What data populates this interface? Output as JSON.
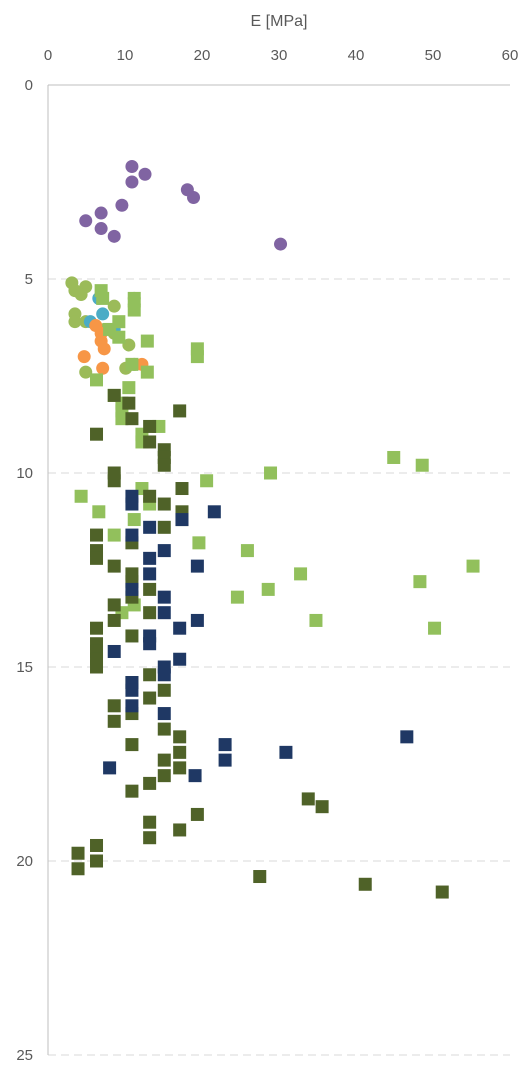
{
  "chart_data": {
    "type": "scatter",
    "title": "",
    "xlabel": "E [MPa]",
    "ylabel": "",
    "xlim": [
      0,
      60
    ],
    "ylim": [
      0,
      25
    ],
    "y_inverted": true,
    "x_axis_position": "top",
    "x_ticks": [
      0,
      10,
      20,
      30,
      40,
      50,
      60
    ],
    "y_ticks": [
      0,
      5,
      10,
      15,
      20,
      25
    ],
    "grid": {
      "horizontal": true,
      "vertical": false,
      "style": "dashed"
    },
    "legend": "none",
    "series": [
      {
        "marker": "circle",
        "color": "#8064a2",
        "points": [
          [
            10.9,
            2.1
          ],
          [
            12.6,
            2.3
          ],
          [
            10.9,
            2.5
          ],
          [
            18.1,
            2.7
          ],
          [
            18.9,
            2.9
          ],
          [
            9.6,
            3.1
          ],
          [
            6.9,
            3.3
          ],
          [
            4.9,
            3.5
          ],
          [
            6.9,
            3.7
          ],
          [
            8.6,
            3.9
          ],
          [
            30.2,
            4.1
          ]
        ]
      },
      {
        "marker": "circle",
        "color": "#9bbb59",
        "points": [
          [
            3.1,
            5.1
          ],
          [
            4.9,
            5.2
          ],
          [
            3.5,
            5.3
          ],
          [
            4.3,
            5.4
          ],
          [
            11.2,
            5.5
          ],
          [
            11.2,
            5.7
          ],
          [
            8.6,
            5.7
          ],
          [
            3.5,
            5.9
          ],
          [
            3.5,
            6.1
          ],
          [
            4.9,
            6.1
          ],
          [
            7.3,
            6.3
          ],
          [
            8.6,
            6.4
          ],
          [
            10.5,
            6.7
          ],
          [
            10.1,
            7.3
          ],
          [
            4.9,
            7.4
          ],
          [
            11.2,
            7.2
          ]
        ]
      },
      {
        "marker": "circle",
        "color": "#4bacc6",
        "points": [
          [
            6.6,
            5.5
          ],
          [
            7.1,
            5.9
          ],
          [
            5.5,
            6.1
          ],
          [
            8.6,
            6.3
          ]
        ]
      },
      {
        "marker": "circle",
        "color": "#f79646",
        "points": [
          [
            6.2,
            6.2
          ],
          [
            6.9,
            6.4
          ],
          [
            6.9,
            6.6
          ],
          [
            7.3,
            6.8
          ],
          [
            4.7,
            7.0
          ],
          [
            12.2,
            7.2
          ],
          [
            7.1,
            7.3
          ]
        ]
      },
      {
        "marker": "square",
        "color": "#92c05c",
        "points": [
          [
            6.9,
            5.3
          ],
          [
            7.1,
            5.5
          ],
          [
            11.2,
            5.5
          ],
          [
            11.2,
            5.8
          ],
          [
            9.2,
            6.1
          ],
          [
            8.0,
            6.3
          ],
          [
            9.2,
            6.5
          ],
          [
            12.9,
            6.6
          ],
          [
            19.4,
            6.8
          ],
          [
            19.4,
            7.0
          ],
          [
            10.9,
            7.2
          ],
          [
            12.9,
            7.4
          ],
          [
            6.3,
            7.6
          ],
          [
            10.5,
            7.8
          ],
          [
            8.6,
            8.0
          ],
          [
            9.6,
            8.2
          ],
          [
            9.6,
            8.4
          ],
          [
            9.6,
            8.6
          ],
          [
            14.4,
            8.8
          ],
          [
            12.2,
            9.0
          ],
          [
            12.2,
            9.2
          ],
          [
            44.9,
            9.6
          ],
          [
            48.6,
            9.8
          ],
          [
            28.9,
            10.0
          ],
          [
            20.6,
            10.2
          ],
          [
            12.2,
            10.4
          ],
          [
            4.3,
            10.6
          ],
          [
            13.2,
            10.8
          ],
          [
            6.6,
            11.0
          ],
          [
            11.2,
            11.2
          ],
          [
            8.6,
            11.6
          ],
          [
            19.6,
            11.8
          ],
          [
            25.9,
            12.0
          ],
          [
            55.2,
            12.4
          ],
          [
            32.8,
            12.6
          ],
          [
            48.3,
            12.8
          ],
          [
            28.6,
            13.0
          ],
          [
            24.6,
            13.2
          ],
          [
            11.2,
            13.4
          ],
          [
            9.6,
            13.6
          ],
          [
            34.8,
            13.8
          ],
          [
            50.2,
            14.0
          ]
        ]
      },
      {
        "marker": "square",
        "color": "#4f6228",
        "points": [
          [
            8.6,
            8.0
          ],
          [
            10.5,
            8.2
          ],
          [
            17.1,
            8.4
          ],
          [
            10.9,
            8.6
          ],
          [
            13.2,
            8.8
          ],
          [
            6.3,
            9.0
          ],
          [
            13.2,
            9.2
          ],
          [
            15.1,
            9.4
          ],
          [
            15.1,
            9.6
          ],
          [
            15.1,
            9.8
          ],
          [
            8.6,
            10.0
          ],
          [
            8.6,
            10.2
          ],
          [
            17.4,
            10.4
          ],
          [
            13.2,
            10.6
          ],
          [
            15.1,
            10.8
          ],
          [
            17.4,
            11.0
          ],
          [
            17.4,
            11.2
          ],
          [
            15.1,
            11.4
          ],
          [
            6.3,
            11.6
          ],
          [
            10.9,
            11.8
          ],
          [
            6.3,
            12.0
          ],
          [
            6.3,
            12.2
          ],
          [
            8.6,
            12.4
          ],
          [
            10.9,
            12.6
          ],
          [
            10.9,
            12.8
          ],
          [
            13.2,
            13.0
          ],
          [
            10.9,
            13.2
          ],
          [
            8.6,
            13.4
          ],
          [
            13.2,
            13.6
          ],
          [
            8.6,
            13.8
          ],
          [
            6.3,
            14.0
          ],
          [
            10.9,
            14.2
          ],
          [
            6.3,
            14.4
          ],
          [
            6.3,
            14.6
          ],
          [
            6.3,
            14.8
          ],
          [
            6.3,
            15.0
          ],
          [
            13.2,
            15.2
          ],
          [
            10.9,
            15.4
          ],
          [
            15.1,
            15.6
          ],
          [
            13.2,
            15.8
          ],
          [
            8.6,
            16.0
          ],
          [
            10.9,
            16.2
          ],
          [
            8.6,
            16.4
          ],
          [
            15.1,
            16.6
          ],
          [
            17.1,
            16.8
          ],
          [
            10.9,
            17.0
          ],
          [
            17.1,
            17.2
          ],
          [
            15.1,
            17.4
          ],
          [
            17.1,
            17.6
          ],
          [
            15.1,
            17.8
          ],
          [
            13.2,
            18.0
          ],
          [
            10.9,
            18.2
          ],
          [
            33.8,
            18.4
          ],
          [
            35.6,
            18.6
          ],
          [
            19.4,
            18.8
          ],
          [
            13.2,
            19.0
          ],
          [
            17.1,
            19.2
          ],
          [
            13.2,
            19.4
          ],
          [
            6.3,
            19.6
          ],
          [
            3.9,
            19.8
          ],
          [
            6.3,
            20.0
          ],
          [
            3.9,
            20.2
          ],
          [
            27.5,
            20.4
          ],
          [
            41.2,
            20.6
          ],
          [
            51.2,
            20.8
          ]
        ]
      },
      {
        "marker": "square",
        "color": "#1f3864",
        "points": [
          [
            10.9,
            10.6
          ],
          [
            10.9,
            10.8
          ],
          [
            21.6,
            11.0
          ],
          [
            17.4,
            11.2
          ],
          [
            13.2,
            11.4
          ],
          [
            10.9,
            11.6
          ],
          [
            15.1,
            12.0
          ],
          [
            13.2,
            12.2
          ],
          [
            19.4,
            12.4
          ],
          [
            13.2,
            12.6
          ],
          [
            10.9,
            13.0
          ],
          [
            15.1,
            13.2
          ],
          [
            15.1,
            13.6
          ],
          [
            19.4,
            13.8
          ],
          [
            17.1,
            14.0
          ],
          [
            13.2,
            14.2
          ],
          [
            13.2,
            14.4
          ],
          [
            8.6,
            14.6
          ],
          [
            17.1,
            14.8
          ],
          [
            15.1,
            15.0
          ],
          [
            15.1,
            15.2
          ],
          [
            10.9,
            15.4
          ],
          [
            10.9,
            15.6
          ],
          [
            10.9,
            16.0
          ],
          [
            15.1,
            16.2
          ],
          [
            46.6,
            16.8
          ],
          [
            23.0,
            17.0
          ],
          [
            30.9,
            17.2
          ],
          [
            23.0,
            17.4
          ],
          [
            8.0,
            17.6
          ],
          [
            19.1,
            17.8
          ]
        ]
      }
    ]
  }
}
